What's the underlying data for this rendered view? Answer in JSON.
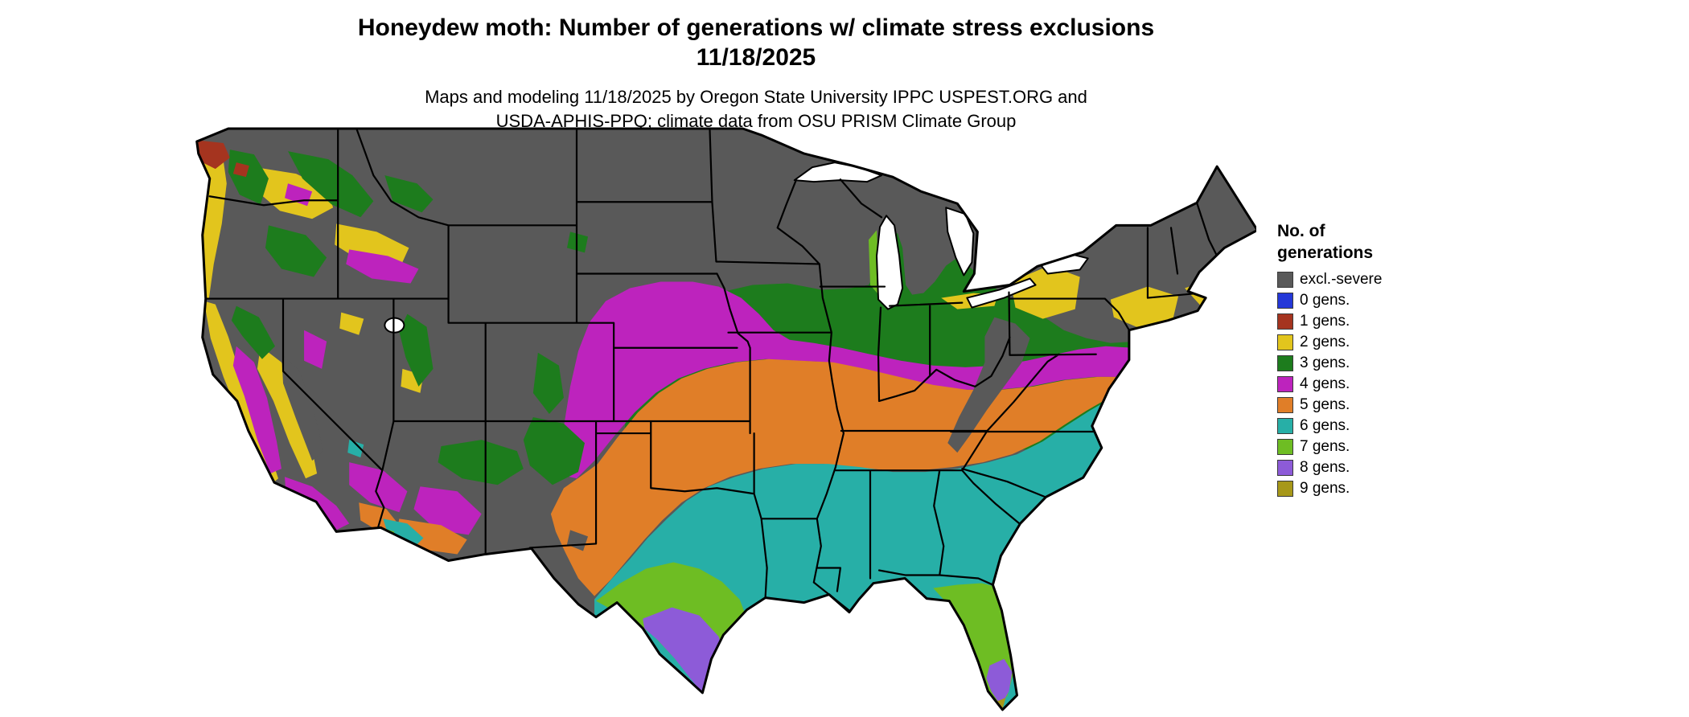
{
  "title": {
    "line1": "Honeydew moth: Number of generations w/ climate stress exclusions",
    "line2": "11/18/2025"
  },
  "subtitle": {
    "line1": "Maps and modeling 11/18/2025 by Oregon State University IPPC USPEST.ORG and",
    "line2": "USDA-APHIS-PPQ; climate data from OSU PRISM Climate Group"
  },
  "legend": {
    "title_line1": "No. of",
    "title_line2": "generations",
    "items": [
      {
        "key": "excl",
        "label": "excl.-severe",
        "color": "#595959"
      },
      {
        "key": "0",
        "label": "0 gens.",
        "color": "#2438d8"
      },
      {
        "key": "1",
        "label": "1 gens.",
        "color": "#a5341f"
      },
      {
        "key": "2",
        "label": "2 gens.",
        "color": "#e2c51d"
      },
      {
        "key": "3",
        "label": "3 gens.",
        "color": "#1d7c1d"
      },
      {
        "key": "4",
        "label": "4 gens.",
        "color": "#bd23bd"
      },
      {
        "key": "5",
        "label": "5 gens.",
        "color": "#e07e28"
      },
      {
        "key": "6",
        "label": "6 gens.",
        "color": "#27afa7"
      },
      {
        "key": "7",
        "label": "7 gens.",
        "color": "#6ebd23"
      },
      {
        "key": "8",
        "label": "8 gens.",
        "color": "#8d5bd8"
      },
      {
        "key": "9",
        "label": "9 gens.",
        "color": "#a79819"
      }
    ]
  },
  "map": {
    "region_label": "Continental United States",
    "background": "#ffffff",
    "boundary_color": "#000000"
  }
}
